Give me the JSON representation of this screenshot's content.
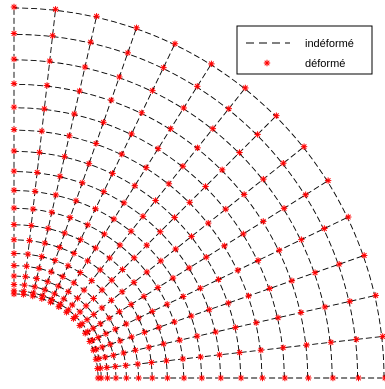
{
  "chart_data": {
    "type": "scatter",
    "title": "",
    "xlabel": "",
    "ylabel": "",
    "legend_placement": "top-right",
    "grid": false,
    "colors": {
      "undeformed": "#000000",
      "deformed": "#ff0000",
      "background": "#ffffff"
    },
    "mesh": {
      "inner_radius": 1,
      "outer_radius": 4.4,
      "radial_divisions": 17,
      "angular_divisions": 14,
      "radial_grading": 1.6,
      "angle_range_deg": [
        0,
        90
      ]
    },
    "series": [
      {
        "name": "indéformé",
        "style": "dashed-line",
        "color": "#000000"
      },
      {
        "name": "déformé",
        "style": "asterisk-marker",
        "color": "#ff0000"
      }
    ]
  }
}
